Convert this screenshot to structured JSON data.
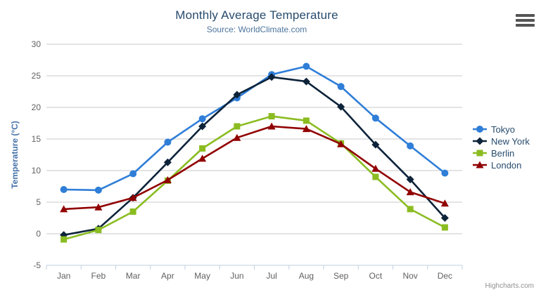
{
  "chart_data": {
    "type": "line",
    "title": "Monthly Average Temperature",
    "subtitle": "Source: WorldClimate.com",
    "categories": [
      "Jan",
      "Feb",
      "Mar",
      "Apr",
      "May",
      "Jun",
      "Jul",
      "Aug",
      "Sep",
      "Oct",
      "Nov",
      "Dec"
    ],
    "xlabel": "",
    "ylabel": "Temperature (°C)",
    "ylim": [
      -5,
      30
    ],
    "ytick_interval": 5,
    "grid": true,
    "legend_position": "right",
    "series": [
      {
        "name": "Tokyo",
        "color": "#2f7ed8",
        "marker": "circle",
        "values": [
          7.0,
          6.9,
          9.5,
          14.5,
          18.2,
          21.5,
          25.2,
          26.5,
          23.3,
          18.3,
          13.9,
          9.6
        ]
      },
      {
        "name": "New York",
        "color": "#0d233a",
        "marker": "diamond",
        "values": [
          -0.2,
          0.8,
          5.7,
          11.3,
          17.0,
          22.0,
          24.8,
          24.1,
          20.1,
          14.1,
          8.6,
          2.5
        ]
      },
      {
        "name": "Berlin",
        "color": "#8bbc21",
        "marker": "square",
        "values": [
          -0.9,
          0.6,
          3.5,
          8.4,
          13.5,
          17.0,
          18.6,
          17.9,
          14.3,
          9.0,
          3.9,
          1.0
        ]
      },
      {
        "name": "London",
        "color": "#910000",
        "marker": "triangle",
        "values": [
          3.9,
          4.2,
          5.7,
          8.5,
          11.9,
          15.2,
          17.0,
          16.6,
          14.2,
          10.3,
          6.6,
          4.8
        ]
      }
    ]
  },
  "palette": {
    "title_color": "#274b6d",
    "subtitle_color": "#4d759e",
    "axis_title_color": "#4572a7",
    "axis_label_color": "#606060",
    "grid_color": "#c8c8c8",
    "axis_line_color": "#c0d0e0",
    "legend_text_color": "#274b6d",
    "credits_color": "#909090",
    "menu_icon_color": "#555555",
    "background": "#ffffff"
  },
  "menu": {
    "icon": "hamburger-icon"
  },
  "credits": {
    "label": "Highcharts.com"
  }
}
